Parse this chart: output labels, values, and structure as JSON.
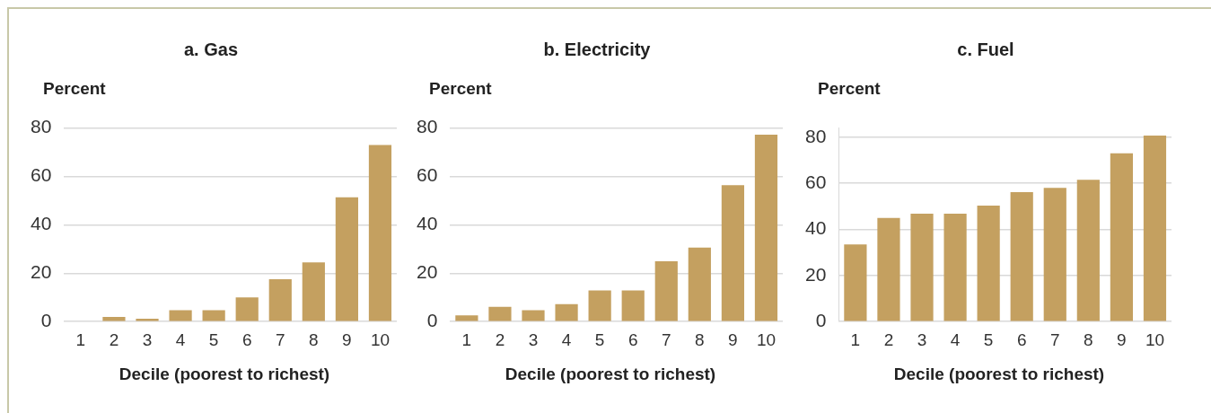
{
  "chart_data": [
    {
      "type": "bar",
      "title": "a. Gas",
      "ylabel": "Percent",
      "xlabel": "Decile (poorest to richest)",
      "categories": [
        "1",
        "2",
        "3",
        "4",
        "5",
        "6",
        "7",
        "8",
        "9",
        "10"
      ],
      "values": [
        0,
        1.9,
        1.2,
        4.7,
        4.7,
        10.0,
        17.5,
        24.5,
        51.4,
        73.0
      ],
      "color": "#c4a060",
      "ylim": [
        0,
        80
      ],
      "yticks": [
        0,
        20,
        40,
        60,
        80
      ],
      "grid": "y",
      "legend": false
    },
    {
      "type": "bar",
      "title": "b. Electricity",
      "ylabel": "Percent",
      "xlabel": "Decile (poorest to richest)",
      "categories": [
        "1",
        "2",
        "3",
        "4",
        "5",
        "6",
        "7",
        "8",
        "9",
        "10"
      ],
      "values": [
        2.6,
        6.1,
        4.7,
        7.2,
        12.9,
        12.9,
        24.9,
        30.6,
        56.4,
        77.3
      ],
      "color": "#c4a060",
      "ylim": [
        0,
        80
      ],
      "yticks": [
        0,
        20,
        40,
        60,
        80
      ],
      "grid": "y",
      "legend": false
    },
    {
      "type": "bar",
      "title": "c. Fuel",
      "ylabel": "Percent",
      "xlabel": "Decile (poorest to richest)",
      "categories": [
        "1",
        "2",
        "3",
        "4",
        "5",
        "6",
        "7",
        "8",
        "9",
        "10"
      ],
      "values": [
        33.5,
        45.0,
        46.8,
        46.8,
        50.3,
        56.2,
        58.0,
        61.5,
        73.0,
        80.7
      ],
      "color": "#c4a060",
      "ylim": [
        0,
        84
      ],
      "yticks": [
        0,
        20,
        40,
        60,
        80
      ],
      "grid": "y",
      "legend": false
    }
  ]
}
